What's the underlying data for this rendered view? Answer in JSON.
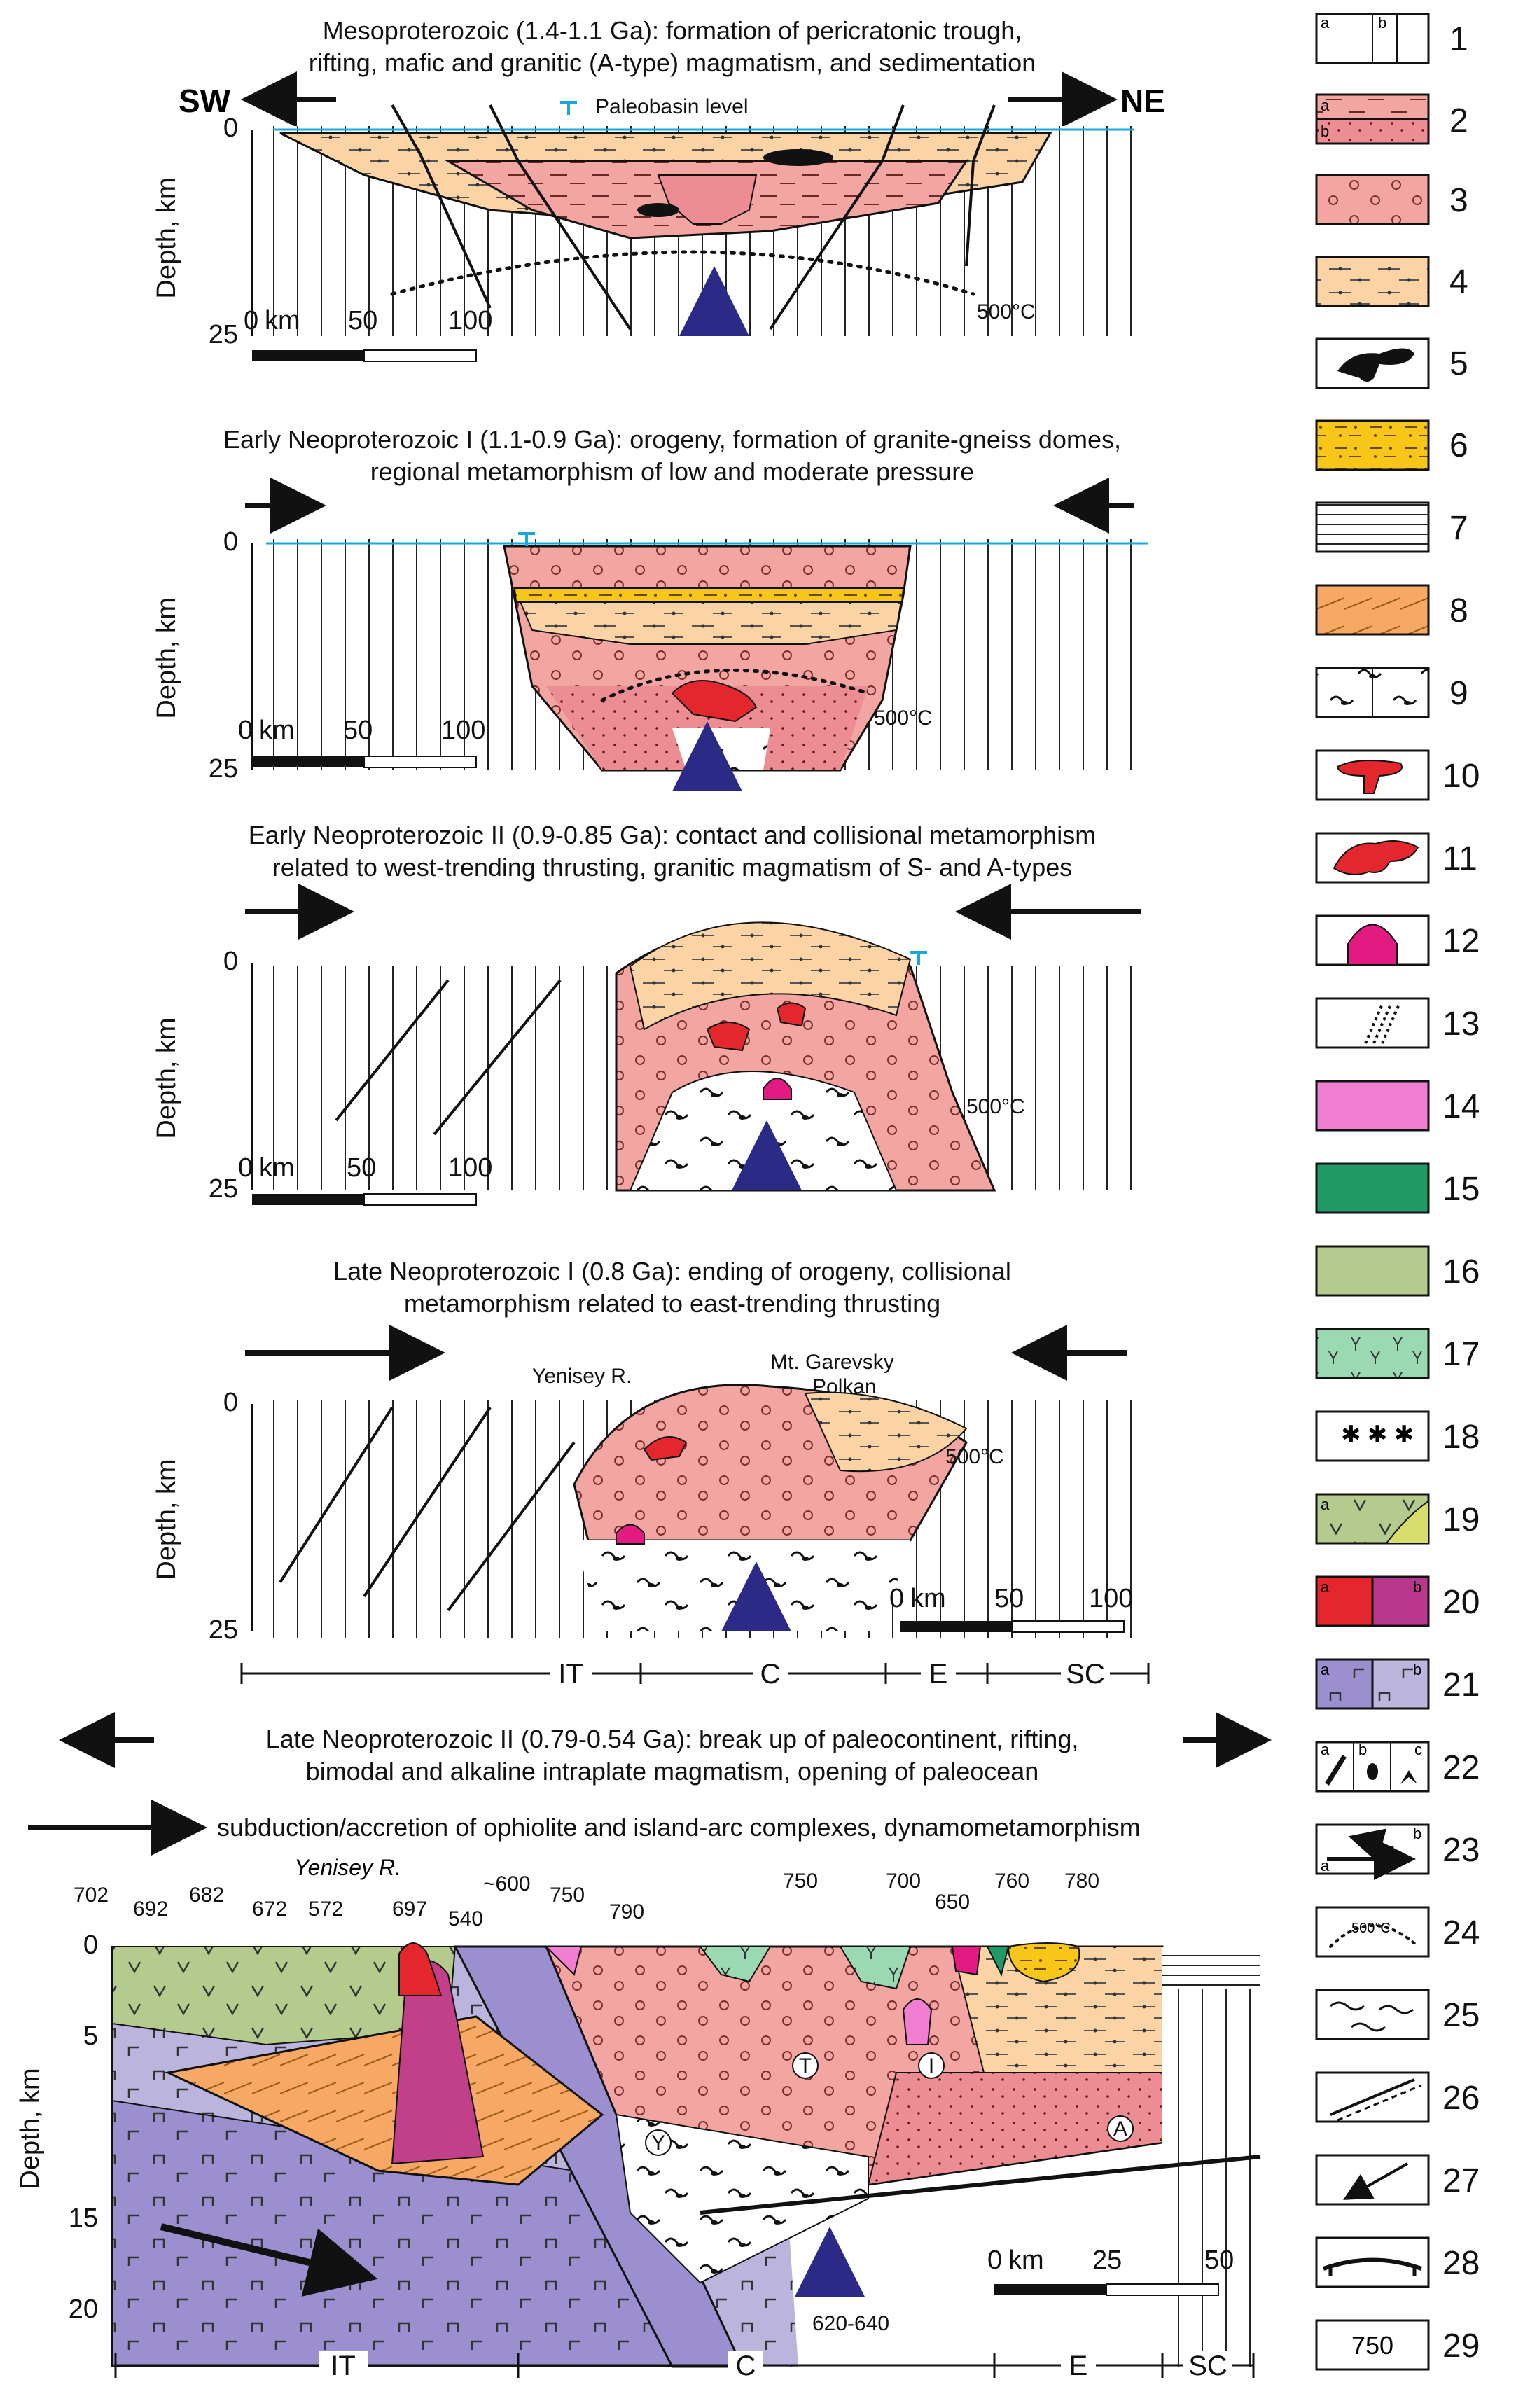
{
  "colors": {
    "pink_meta": "#f3a6a1",
    "pink_dark": "#ec8c93",
    "tan_sed": "#fbd3a5",
    "yellow": "#f8c519",
    "orange": "#f6a864",
    "red_granite": "#e4262d",
    "magenta": "#e31a82",
    "pink_light": "#f07ed1",
    "green_dark": "#1f9a67",
    "olive": "#b5cb8e",
    "green_light": "#9bd9b2",
    "lavender": "#bbb4dd",
    "purple": "#9b8fcf",
    "blue_arrow": "#2b2a86",
    "cyan_line": "#1aa7dd"
  },
  "panels": {
    "p1": {
      "title_line1": "Mesoproterozoic (1.4-1.1 Ga): formation of pericratonic trough,",
      "title_line2": "rifting, mafic and granitic (A-type) magmatism, and sedimentation",
      "sw": "SW",
      "ne": "NE",
      "paleobasin": "Paleobasin level",
      "depth_label": "Depth, km",
      "depth_0": "0",
      "depth_25": "25",
      "scale_0": "0",
      "scale_km": "km",
      "scale_50": "50",
      "scale_100": "100",
      "isotherm": "500°C"
    },
    "p2": {
      "title_line1": "Early Neoproterozoic I (1.1-0.9 Ga): orogeny, formation of granite-gneiss domes,",
      "title_line2": "regional metamorphism of low and moderate pressure",
      "depth_label": "Depth, km",
      "depth_0": "0",
      "depth_25": "25",
      "scale_0": "0",
      "scale_km": "km",
      "scale_50": "50",
      "scale_100": "100",
      "isotherm": "500°C"
    },
    "p3": {
      "title_line1": "Early Neoproterozoic II (0.9-0.85 Ga): contact and collisional metamorphism",
      "title_line2": "related to west-trending thrusting, granitic magmatism of S- and A-types",
      "depth_label": "Depth, km",
      "depth_0": "0",
      "depth_25": "25",
      "scale_0": "0",
      "scale_km": "km",
      "scale_50": "50",
      "scale_100": "100",
      "isotherm": "500°C"
    },
    "p4": {
      "title_line1": "Late Neoproterozoic I (0.8 Ga): ending of orogeny, collisional",
      "title_line2": "metamorphism related to east-trending thrusting",
      "yenisey": "Yenisey R.",
      "garevsky1": "Mt. Garevsky",
      "garevsky2": "Polkan",
      "depth_label": "Depth, km",
      "depth_0": "0",
      "depth_25": "25",
      "scale_0": "0",
      "scale_km": "km",
      "scale_50": "50",
      "scale_100": "100",
      "isotherm": "500°C",
      "zones": [
        "IT",
        "C",
        "E",
        "SC"
      ]
    },
    "p5": {
      "title_line1": "Late Neoproterozoic II (0.79-0.54 Ga): break up of paleocontinent, rifting,",
      "title_line2": "bimodal and alkaline intraplate magmatism, opening of paleocean",
      "title_line3": "subduction/accretion of ophiolite and island-arc complexes, dynamometamorphism",
      "yenisey": "Yenisey R.",
      "ages": [
        "702",
        "692",
        "682",
        "672",
        "572",
        "697",
        "540",
        "~600",
        "750",
        "790",
        "750",
        "700",
        "650",
        "760",
        "780"
      ],
      "age_bottom": "620-640",
      "depth_label": "Depth, km",
      "depth_0": "0",
      "depth_5": "5",
      "depth_15": "15",
      "depth_20": "20",
      "scale_0": "0",
      "scale_km": "km",
      "scale_25": "25",
      "scale_50": "50",
      "circles": [
        "Y",
        "T",
        "I",
        "A"
      ],
      "zones": [
        "IT",
        "C",
        "E",
        "SC"
      ]
    }
  },
  "legend": {
    "numbers": [
      "1",
      "2",
      "3",
      "4",
      "5",
      "6",
      "7",
      "8",
      "9",
      "10",
      "11",
      "12",
      "13",
      "14",
      "15",
      "16",
      "17",
      "18",
      "19",
      "20",
      "21",
      "22",
      "23",
      "24",
      "25",
      "26",
      "27",
      "28",
      "29"
    ],
    "sub_a": "a",
    "sub_b": "b",
    "sub_c": "c",
    "isotherm": "500°C",
    "box29": "750"
  }
}
